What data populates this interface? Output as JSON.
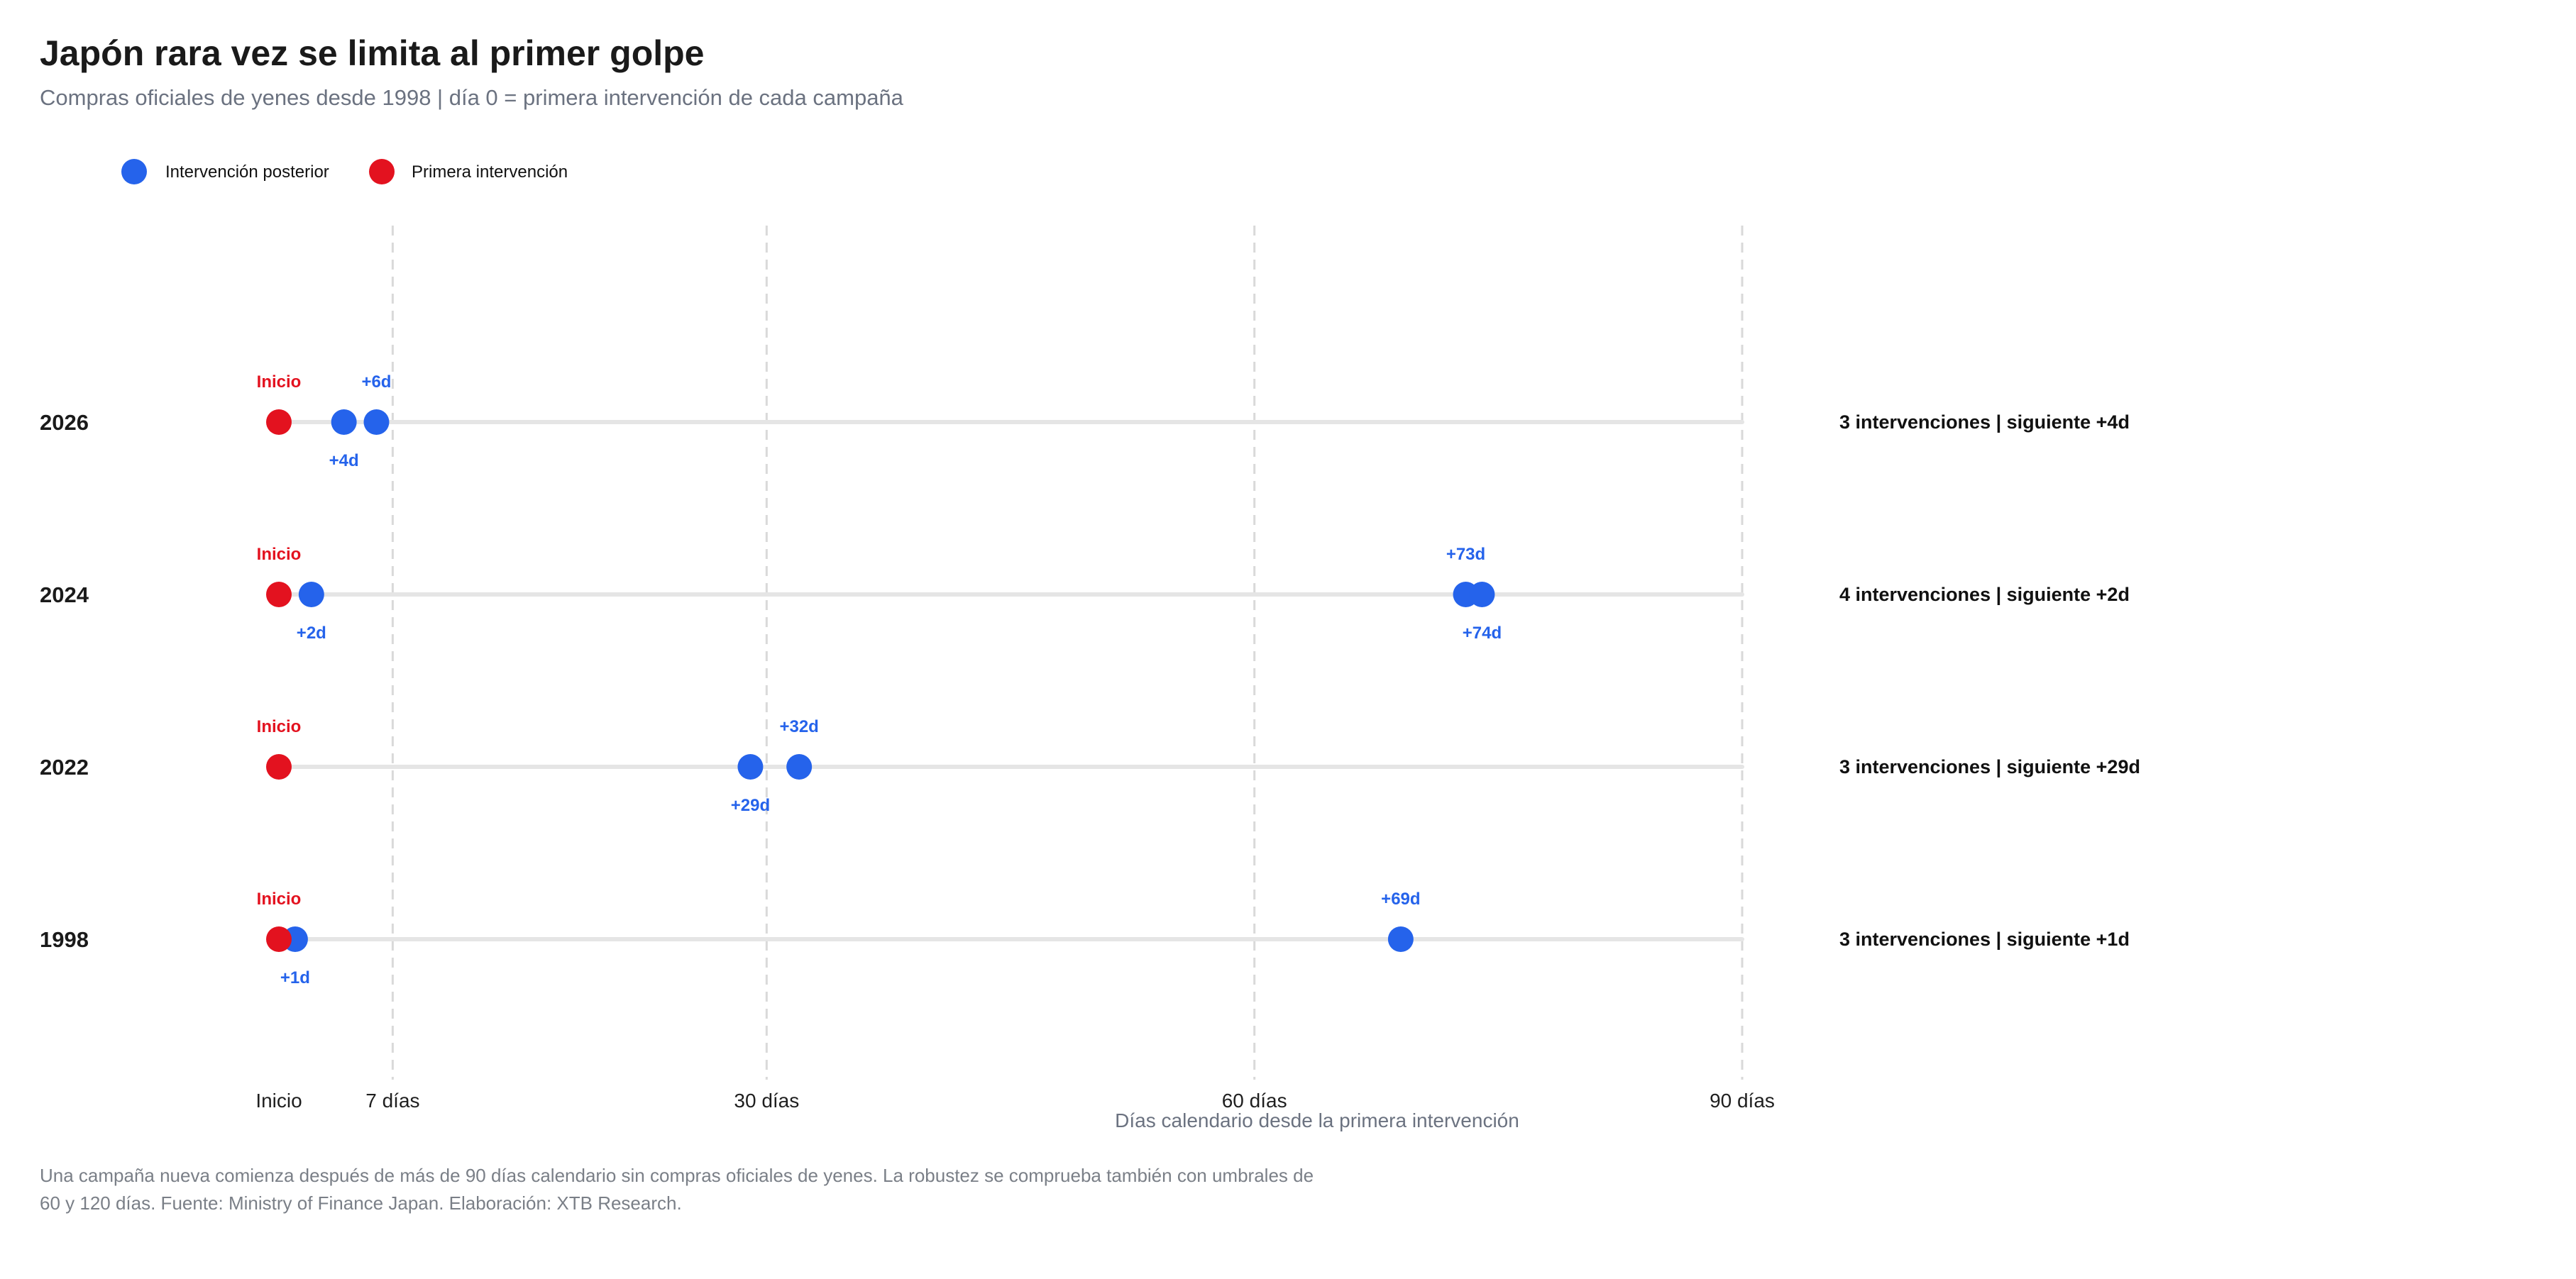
{
  "chart_data": {
    "type": "scatter",
    "title": "Japón rara vez se limita al primer golpe",
    "subtitle": "Compras oficiales de yenes desde 1998 | día 0 = primera intervención de cada campaña",
    "xlabel": "Días calendario desde la primera intervención",
    "xlim": [
      0,
      90
    ],
    "xticks": [
      {
        "value": 0,
        "label": "Inicio"
      },
      {
        "value": 7,
        "label": "7 días"
      },
      {
        "value": 30,
        "label": "30 días"
      },
      {
        "value": 60,
        "label": "60 días"
      },
      {
        "value": 90,
        "label": "90 días"
      }
    ],
    "gridlines_at": [
      7,
      30,
      60,
      90
    ],
    "legend": {
      "placement": "top-left",
      "entries": [
        {
          "label": "Intervención posterior",
          "color": "#2563eb"
        },
        {
          "label": "Primera intervención",
          "color": "#e3121f"
        }
      ]
    },
    "colors": {
      "first": "#e3121f",
      "later": "#2563eb",
      "track": "#e5e5e5",
      "grid": "#d9d9d9"
    },
    "campaigns": [
      {
        "year": "2026",
        "days": [
          0,
          4,
          6
        ],
        "point_labels": [
          "Inicio",
          "+4d",
          "+6d"
        ],
        "summary": "3 intervenciones | siguiente +4d"
      },
      {
        "year": "2024",
        "days": [
          0,
          2,
          73,
          74
        ],
        "point_labels": [
          "Inicio",
          "+2d",
          "+73d",
          "+74d"
        ],
        "summary": "4 intervenciones | siguiente +2d"
      },
      {
        "year": "2022",
        "days": [
          0,
          29,
          32
        ],
        "point_labels": [
          "Inicio",
          "+29d",
          "+32d"
        ],
        "summary": "3 intervenciones | siguiente +29d"
      },
      {
        "year": "1998",
        "days": [
          0,
          1,
          69
        ],
        "point_labels": [
          "Inicio",
          "+1d",
          "+69d"
        ],
        "summary": "3 intervenciones | siguiente +1d"
      }
    ]
  },
  "footnote": {
    "line1": "Una campaña nueva comienza después de más de 90 días calendario sin compras oficiales de yenes. La robustez se comprueba también con umbrales de",
    "line2": "60 y 120 días. Fuente: Ministry of Finance Japan. Elaboración: XTB Research."
  }
}
